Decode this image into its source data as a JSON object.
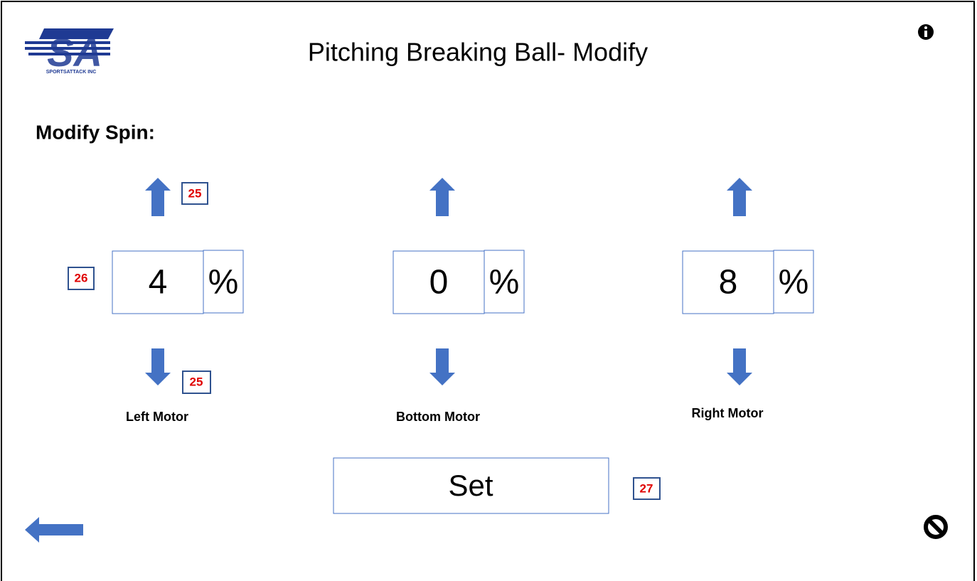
{
  "logo": {
    "letters": "SA",
    "caption": "SPORTSATTACK INC"
  },
  "header": {
    "title": "Pitching Breaking Ball- Modify"
  },
  "section_label": "Modify Spin:",
  "motors": [
    {
      "value": 4,
      "unit": "%",
      "label": "Left Motor"
    },
    {
      "value": 0,
      "unit": "%",
      "label": "Bottom Motor"
    },
    {
      "value": 8,
      "unit": "%",
      "label": "Right Motor"
    }
  ],
  "set_button": "Set",
  "callouts": [
    "25",
    "26",
    "25",
    "27"
  ]
}
